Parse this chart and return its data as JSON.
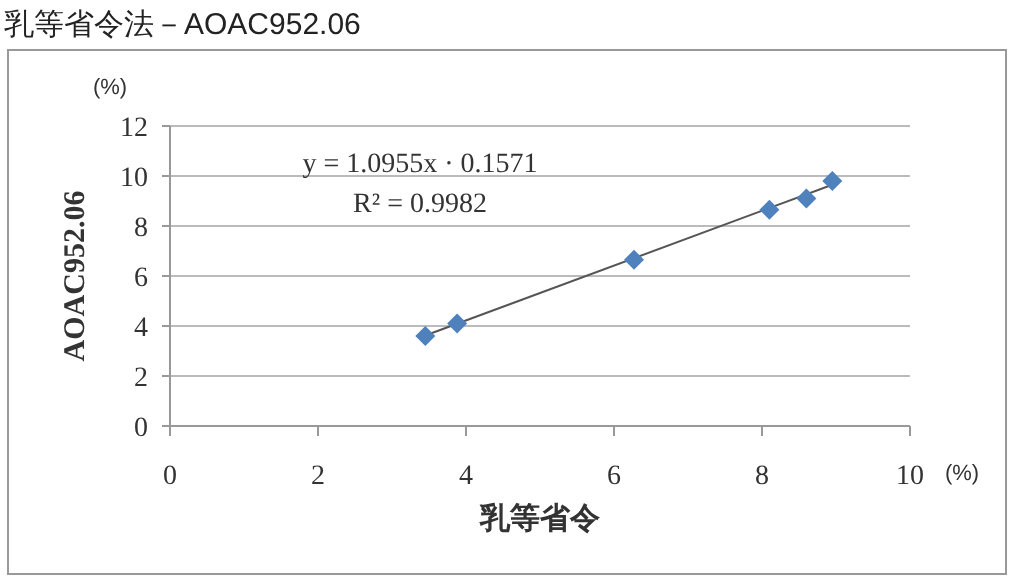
{
  "chart_data": {
    "type": "scatter",
    "title": "乳等省令法－AOAC952.06",
    "xlabel": "乳等省令",
    "ylabel": "AOAC952.06",
    "annotations": [
      "y = 1.0955x · 0.1571",
      "R² = 0.9982",
      "(%)",
      "(%)"
    ],
    "series": [
      {
        "type": "scatter",
        "color": "#4f81bd",
        "marker": "diamond",
        "x": [
          3.45,
          3.88,
          6.27,
          8.1,
          8.6,
          8.95
        ],
        "values": [
          3.6,
          4.1,
          6.65,
          8.65,
          9.1,
          9.8
        ]
      },
      {
        "type": "line",
        "color": "#555555",
        "marker": "none",
        "x": [
          3.45,
          8.95
        ],
        "values": [
          3.62,
          9.65
        ]
      }
    ],
    "xlim": [
      0,
      10
    ],
    "xticks": [
      0,
      2,
      4,
      6,
      8,
      10
    ],
    "ylim": [
      0,
      12
    ],
    "yticks": [
      0,
      2,
      4,
      6,
      8,
      10,
      12
    ],
    "grid": "y"
  }
}
